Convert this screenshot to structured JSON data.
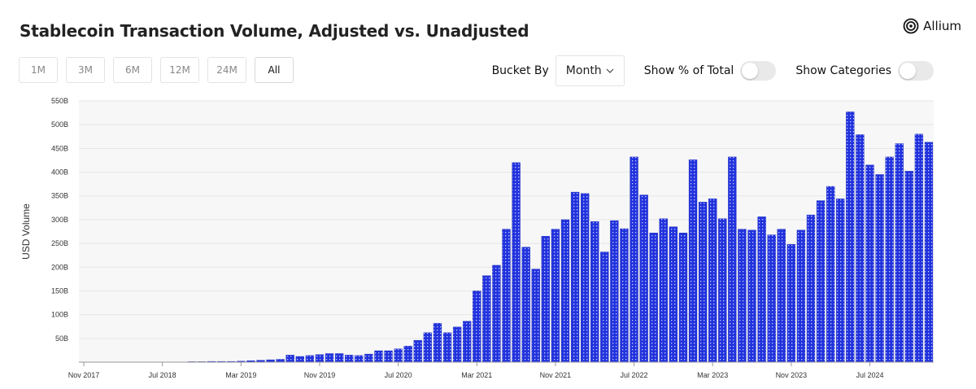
{
  "header": {
    "title": "Stablecoin Transaction Volume, Adjusted vs. Unadjusted",
    "logo_text": "Allium"
  },
  "ranges": [
    {
      "label": "1M",
      "active": false
    },
    {
      "label": "3M",
      "active": false
    },
    {
      "label": "6M",
      "active": false
    },
    {
      "label": "12M",
      "active": false
    },
    {
      "label": "24M",
      "active": false
    },
    {
      "label": "All",
      "active": true
    }
  ],
  "controls": {
    "bucket_by_label": "Bucket By",
    "bucket_value": "Month",
    "show_pct_label": "Show % of Total",
    "show_pct_on": false,
    "show_categories_label": "Show Categories",
    "show_categories_on": false
  },
  "colors": {
    "bar": "#2233dd",
    "bar_edge": "#1a28b8",
    "grid": "#e6e6e6",
    "plot_bg": "#f7f7f7"
  },
  "chart_data": {
    "type": "bar",
    "title": "Stablecoin Transaction Volume, Adjusted vs. Unadjusted",
    "ylabel": "USD Volume",
    "xlabel": "",
    "ylim": [
      0,
      550
    ],
    "yticks": [
      50,
      100,
      150,
      200,
      250,
      300,
      350,
      400,
      450,
      500,
      550
    ],
    "ytick_labels": [
      "50B",
      "100B",
      "150B",
      "200B",
      "250B",
      "300B",
      "350B",
      "400B",
      "450B",
      "500B",
      "550B"
    ],
    "x_start": "Nov 2017",
    "x_tick_labels": [
      "Nov 2017",
      "Jul 2018",
      "Mar 2019",
      "Nov 2019",
      "Jul 2020",
      "Mar 2021",
      "Nov 2021",
      "Jul 2022",
      "Mar 2023",
      "Nov 2023",
      "Jul 2024"
    ],
    "x_tick_positions": [
      0,
      8,
      16,
      24,
      32,
      40,
      48,
      56,
      64,
      72,
      80
    ],
    "grid": true,
    "legend": "none",
    "values": [
      0.5,
      0.5,
      0.5,
      0.5,
      0.5,
      0.5,
      0.5,
      0.5,
      0.5,
      0.5,
      0.5,
      1,
      1,
      1.5,
      1.5,
      1.5,
      2,
      3,
      4,
      5,
      6,
      15,
      12,
      14,
      16,
      18,
      18,
      15,
      14,
      17,
      24,
      24,
      28,
      34,
      46,
      62,
      82,
      62,
      74,
      86,
      150,
      182,
      204,
      280,
      420,
      242,
      196,
      265,
      280,
      300,
      358,
      355,
      296,
      232,
      298,
      281,
      432,
      352,
      272,
      302,
      285,
      272,
      426,
      337,
      344,
      302,
      432,
      280,
      278,
      306,
      268,
      280,
      248,
      278,
      310,
      340,
      370,
      344,
      527,
      479,
      415,
      395,
      432,
      460,
      402,
      480,
      463
    ]
  }
}
